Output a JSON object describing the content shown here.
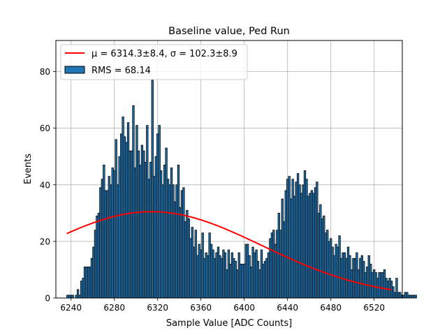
{
  "chart_data": {
    "type": "bar",
    "title": "Baseline value, Ped Run",
    "xlabel": "Sample Value [ADC Counts]",
    "ylabel": "Events",
    "xlim": [
      6226,
      6546
    ],
    "ylim": [
      0,
      91
    ],
    "xticks": [
      6240,
      6280,
      6320,
      6360,
      6400,
      6440,
      6480,
      6520
    ],
    "yticks": [
      0,
      20,
      40,
      60,
      80
    ],
    "grid": true,
    "legend_position": "top-left",
    "bin_start": 6236,
    "bin_width": 1.6,
    "histogram": {
      "name": "RMS = 68.14",
      "color": "#1f77b4",
      "edgecolor": "#000000",
      "counts": [
        1,
        1,
        1,
        1,
        0,
        1,
        3,
        1,
        6,
        7,
        11,
        11,
        11,
        11,
        14,
        18,
        24,
        29,
        30,
        39,
        42,
        47,
        38,
        38,
        43,
        40,
        46,
        45,
        56,
        40,
        50,
        58,
        64,
        57,
        55,
        62,
        52,
        52,
        68,
        46,
        61,
        52,
        47,
        54,
        52,
        48,
        61,
        42,
        48,
        77,
        43,
        50,
        58,
        61,
        45,
        40,
        47,
        53,
        42,
        40,
        46,
        40,
        34,
        40,
        47,
        32,
        38,
        39,
        27,
        31,
        28,
        21,
        25,
        18,
        24,
        15,
        19,
        17,
        23,
        14,
        16,
        15,
        23,
        19,
        17,
        14,
        16,
        18,
        15,
        14,
        17,
        16,
        10,
        17,
        12,
        16,
        14,
        13,
        10,
        16,
        12,
        12,
        12,
        19,
        19,
        15,
        11,
        18,
        16,
        17,
        13,
        10,
        17,
        12,
        13,
        14,
        16,
        21,
        23,
        24,
        19,
        24,
        30,
        24,
        35,
        27,
        38,
        42,
        43,
        35,
        42,
        36,
        41,
        44,
        40,
        37,
        40,
        45,
        42,
        36,
        37,
        38,
        37,
        39,
        41,
        30,
        33,
        28,
        29,
        23,
        24,
        20,
        21,
        18,
        15,
        19,
        18,
        22,
        14,
        16,
        16,
        14,
        18,
        15,
        10,
        14,
        14,
        16,
        10,
        14,
        15,
        13,
        9,
        11,
        15,
        12,
        9,
        10,
        9,
        7,
        9,
        9,
        9,
        10,
        7,
        6,
        7,
        6,
        4,
        2,
        7,
        2,
        2,
        1,
        1,
        2,
        2,
        1,
        1,
        1,
        1,
        1
      ]
    },
    "series": [
      {
        "name": "μ = 6314.3±8.4, σ = 102.3±8.9",
        "type": "line",
        "color": "#ff0000",
        "function": "gaussian",
        "mu": 6314.3,
        "sigma": 102.3,
        "amplitude": 30.5,
        "x_range": [
          6236,
          6536
        ]
      }
    ]
  }
}
